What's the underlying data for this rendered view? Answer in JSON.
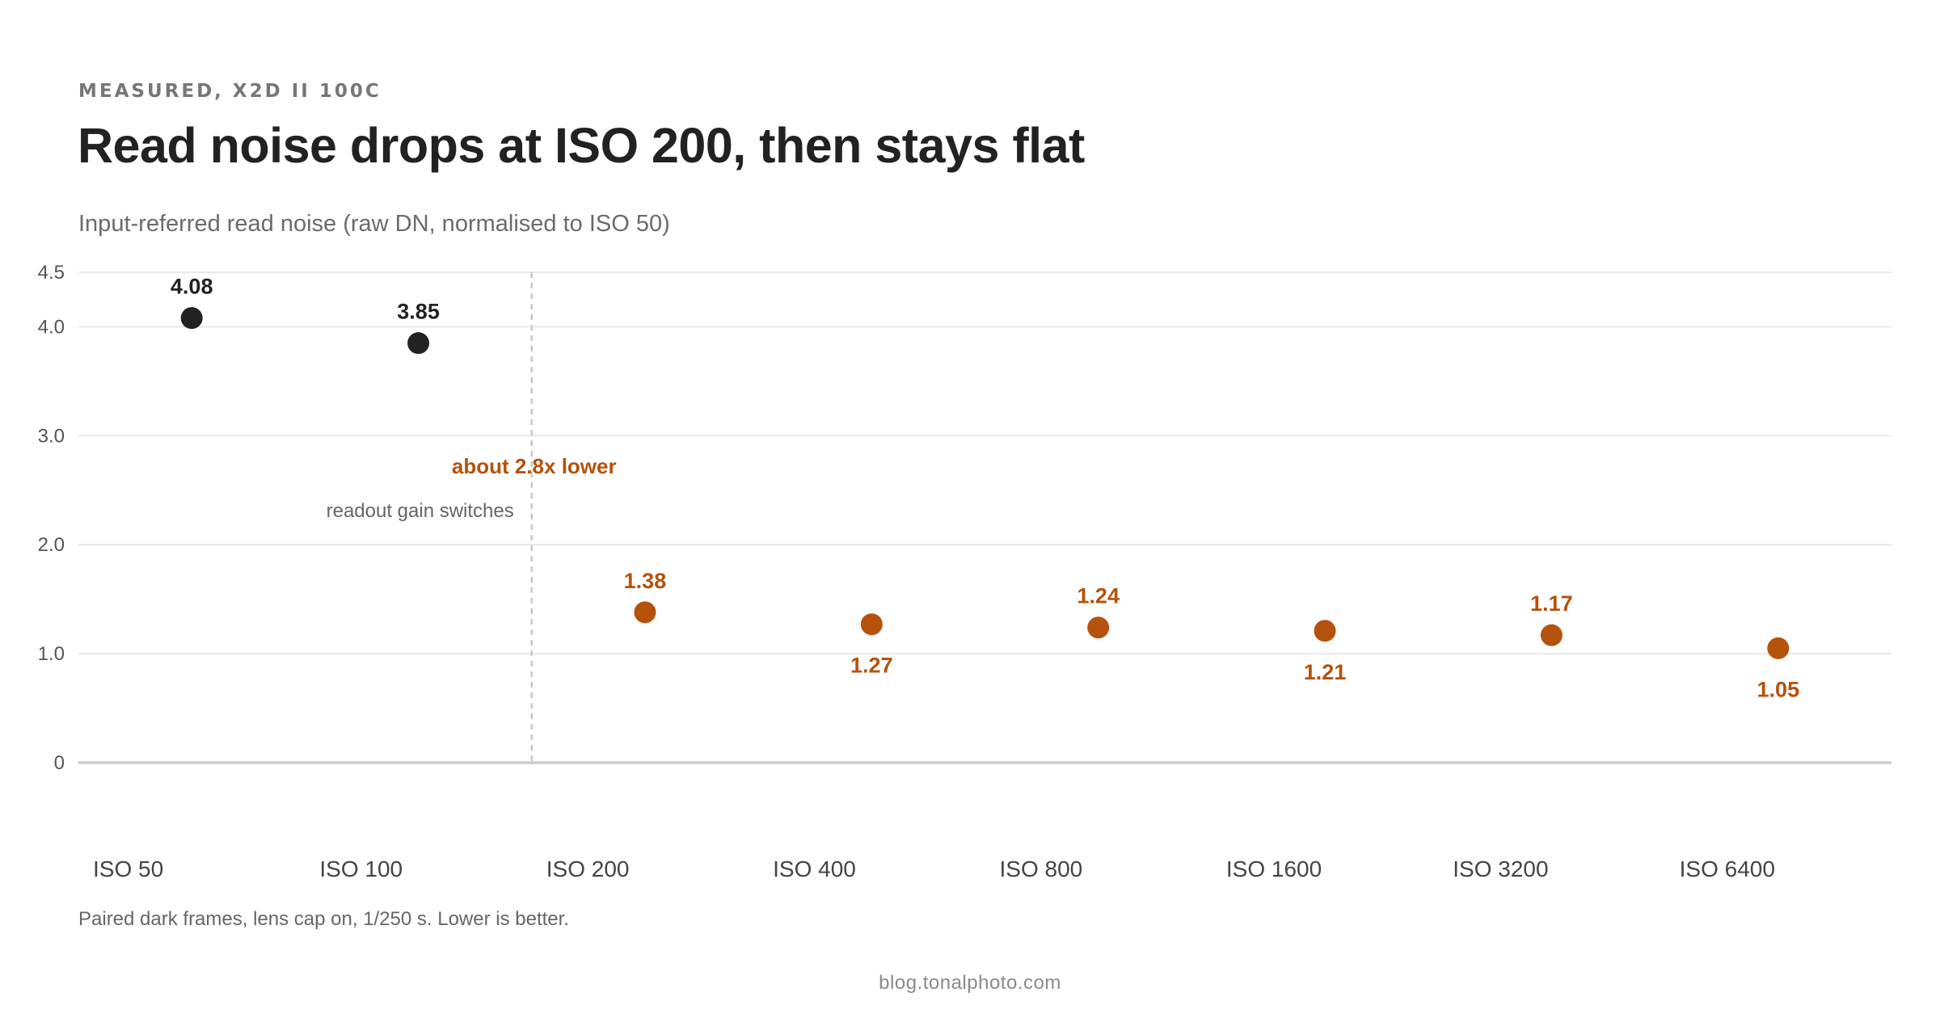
{
  "header": {
    "eyebrow": "MEASURED, X2D II 100C",
    "title": "Read noise drops at ISO 200, then stays flat",
    "subtitle": "Input-referred read noise (raw DN, normalised to ISO 50)"
  },
  "footer": {
    "note": "Paired dark frames, lens cap on, 1/250 s. Lower is better.",
    "source": "blog.tonalphoto.com"
  },
  "colors": {
    "low_gain": "#222222",
    "high_gain": "#b5520c",
    "grid": "#e2e2e2",
    "baseline": "#cccccc",
    "divider": "#c8c8c8"
  },
  "chart_data": {
    "type": "scatter",
    "categories": [
      "ISO 50",
      "ISO 100",
      "ISO 200",
      "ISO 400",
      "ISO 800",
      "ISO 1600",
      "ISO 3200",
      "ISO 6400"
    ],
    "values": [
      4.08,
      3.85,
      1.38,
      1.27,
      1.24,
      1.21,
      1.17,
      1.05
    ],
    "data_labels": [
      "4.08",
      "3.85",
      "1.38",
      "1.27",
      "1.24",
      "1.21",
      "1.17",
      "1.05"
    ],
    "label_positions": [
      "above",
      "above",
      "above",
      "below",
      "above",
      "below",
      "above",
      "below"
    ],
    "point_groups": [
      "low_gain",
      "low_gain",
      "high_gain",
      "high_gain",
      "high_gain",
      "high_gain",
      "high_gain",
      "high_gain"
    ],
    "y_ticks": [
      0,
      1.0,
      2.0,
      3.0,
      4.0,
      4.5
    ],
    "y_tick_labels": [
      "0",
      "1.0",
      "2.0",
      "3.0",
      "4.0",
      "4.5"
    ],
    "ylim": [
      0,
      4.5
    ],
    "grid": true,
    "annotations": {
      "divider_between": [
        "ISO 100",
        "ISO 200"
      ],
      "ratio_text": "about 2.8x lower",
      "divider_text": "readout gain switches"
    }
  }
}
